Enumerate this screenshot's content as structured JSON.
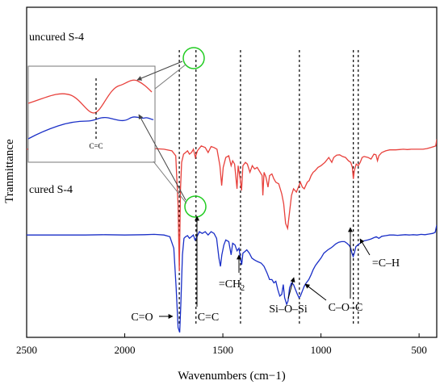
{
  "chart_data": {
    "type": "line",
    "xlabel": "Wavenumbers (cm−1)",
    "ylabel": "Tranmittance",
    "xlim": [
      2500,
      410
    ],
    "x_ticks": [
      "2500",
      "2000",
      "1500",
      "1000",
      "500"
    ],
    "x_tick_values": [
      2500,
      2000,
      1500,
      1000,
      500
    ],
    "series": [
      {
        "name": "uncured S-4",
        "color": "#e8413c",
        "points": [
          [
            2500,
            0.57
          ],
          [
            2400,
            0.57
          ],
          [
            2300,
            0.57
          ],
          [
            2200,
            0.571
          ],
          [
            2100,
            0.569
          ],
          [
            2000,
            0.571
          ],
          [
            1900,
            0.572
          ],
          [
            1850,
            0.572
          ],
          [
            1800,
            0.57
          ],
          [
            1760,
            0.565
          ],
          [
            1740,
            0.55
          ],
          [
            1728,
            0.4
          ],
          [
            1722,
            0.2
          ],
          [
            1716,
            0.45
          ],
          [
            1710,
            0.53
          ],
          [
            1700,
            0.555
          ],
          [
            1690,
            0.56
          ],
          [
            1680,
            0.565
          ],
          [
            1670,
            0.555
          ],
          [
            1660,
            0.56
          ],
          [
            1650,
            0.57
          ],
          [
            1640,
            0.545
          ],
          [
            1630,
            0.565
          ],
          [
            1610,
            0.58
          ],
          [
            1590,
            0.575
          ],
          [
            1575,
            0.56
          ],
          [
            1560,
            0.578
          ],
          [
            1545,
            0.575
          ],
          [
            1530,
            0.57
          ],
          [
            1515,
            0.52
          ],
          [
            1506,
            0.46
          ],
          [
            1498,
            0.515
          ],
          [
            1485,
            0.545
          ],
          [
            1470,
            0.55
          ],
          [
            1458,
            0.52
          ],
          [
            1450,
            0.535
          ],
          [
            1440,
            0.525
          ],
          [
            1428,
            0.45
          ],
          [
            1422,
            0.52
          ],
          [
            1412,
            0.48
          ],
          [
            1405,
            0.445
          ],
          [
            1398,
            0.52
          ],
          [
            1385,
            0.53
          ],
          [
            1375,
            0.525
          ],
          [
            1362,
            0.5
          ],
          [
            1350,
            0.52
          ],
          [
            1338,
            0.51
          ],
          [
            1325,
            0.515
          ],
          [
            1300,
            0.49
          ],
          [
            1296,
            0.43
          ],
          [
            1290,
            0.5
          ],
          [
            1280,
            0.485
          ],
          [
            1270,
            0.455
          ],
          [
            1262,
            0.49
          ],
          [
            1250,
            0.495
          ],
          [
            1240,
            0.48
          ],
          [
            1230,
            0.47
          ],
          [
            1215,
            0.465
          ],
          [
            1200,
            0.435
          ],
          [
            1190,
            0.405
          ],
          [
            1180,
            0.345
          ],
          [
            1170,
            0.33
          ],
          [
            1160,
            0.38
          ],
          [
            1150,
            0.43
          ],
          [
            1140,
            0.45
          ],
          [
            1125,
            0.44
          ],
          [
            1115,
            0.455
          ],
          [
            1105,
            0.47
          ],
          [
            1095,
            0.455
          ],
          [
            1085,
            0.45
          ],
          [
            1070,
            0.47
          ],
          [
            1060,
            0.475
          ],
          [
            1050,
            0.49
          ],
          [
            1040,
            0.5
          ],
          [
            1030,
            0.505
          ],
          [
            1015,
            0.515
          ],
          [
            1000,
            0.52
          ],
          [
            980,
            0.53
          ],
          [
            960,
            0.545
          ],
          [
            945,
            0.53
          ],
          [
            935,
            0.545
          ],
          [
            920,
            0.552
          ],
          [
            905,
            0.553
          ],
          [
            890,
            0.548
          ],
          [
            875,
            0.545
          ],
          [
            860,
            0.535
          ],
          [
            848,
            0.53
          ],
          [
            840,
            0.515
          ],
          [
            835,
            0.48
          ],
          [
            830,
            0.505
          ],
          [
            820,
            0.525
          ],
          [
            810,
            0.52
          ],
          [
            800,
            0.53
          ],
          [
            790,
            0.545
          ],
          [
            780,
            0.548
          ],
          [
            760,
            0.545
          ],
          [
            745,
            0.54
          ],
          [
            730,
            0.555
          ],
          [
            720,
            0.553
          ],
          [
            712,
            0.535
          ],
          [
            705,
            0.55
          ],
          [
            690,
            0.56
          ],
          [
            670,
            0.565
          ],
          [
            650,
            0.568
          ],
          [
            620,
            0.568
          ],
          [
            600,
            0.569
          ],
          [
            580,
            0.57
          ],
          [
            560,
            0.569
          ],
          [
            540,
            0.57
          ],
          [
            520,
            0.57
          ],
          [
            500,
            0.57
          ],
          [
            480,
            0.57
          ],
          [
            460,
            0.572
          ],
          [
            440,
            0.575
          ],
          [
            425,
            0.578
          ],
          [
            415,
            0.58
          ],
          [
            410,
            0.6
          ]
        ]
      },
      {
        "name": "cured S-4",
        "color": "#1a2fc7",
        "points": [
          [
            2500,
            0.31
          ],
          [
            2400,
            0.31
          ],
          [
            2300,
            0.31
          ],
          [
            2200,
            0.31
          ],
          [
            2100,
            0.311
          ],
          [
            2000,
            0.31
          ],
          [
            1900,
            0.311
          ],
          [
            1850,
            0.312
          ],
          [
            1800,
            0.31
          ],
          [
            1770,
            0.305
          ],
          [
            1750,
            0.27
          ],
          [
            1738,
            0.15
          ],
          [
            1728,
            0.03
          ],
          [
            1720,
            0.015
          ],
          [
            1714,
            0.1
          ],
          [
            1706,
            0.25
          ],
          [
            1698,
            0.3
          ],
          [
            1690,
            0.305
          ],
          [
            1680,
            0.308
          ],
          [
            1670,
            0.3
          ],
          [
            1660,
            0.305
          ],
          [
            1650,
            0.31
          ],
          [
            1642,
            0.295
          ],
          [
            1632,
            0.305
          ],
          [
            1620,
            0.32
          ],
          [
            1605,
            0.315
          ],
          [
            1590,
            0.32
          ],
          [
            1575,
            0.31
          ],
          [
            1560,
            0.32
          ],
          [
            1545,
            0.315
          ],
          [
            1532,
            0.3
          ],
          [
            1520,
            0.24
          ],
          [
            1512,
            0.215
          ],
          [
            1505,
            0.25
          ],
          [
            1495,
            0.28
          ],
          [
            1485,
            0.295
          ],
          [
            1470,
            0.29
          ],
          [
            1458,
            0.25
          ],
          [
            1450,
            0.285
          ],
          [
            1438,
            0.28
          ],
          [
            1428,
            0.262
          ],
          [
            1418,
            0.27
          ],
          [
            1410,
            0.24
          ],
          [
            1404,
            0.22
          ],
          [
            1398,
            0.255
          ],
          [
            1388,
            0.26
          ],
          [
            1378,
            0.265
          ],
          [
            1365,
            0.255
          ],
          [
            1352,
            0.24
          ],
          [
            1340,
            0.235
          ],
          [
            1325,
            0.23
          ],
          [
            1305,
            0.225
          ],
          [
            1290,
            0.215
          ],
          [
            1275,
            0.195
          ],
          [
            1262,
            0.175
          ],
          [
            1250,
            0.175
          ],
          [
            1240,
            0.165
          ],
          [
            1230,
            0.17
          ],
          [
            1220,
            0.145
          ],
          [
            1210,
            0.125
          ],
          [
            1200,
            0.13
          ],
          [
            1192,
            0.16
          ],
          [
            1185,
            0.12
          ],
          [
            1175,
            0.1
          ],
          [
            1168,
            0.11
          ],
          [
            1160,
            0.15
          ],
          [
            1150,
            0.165
          ],
          [
            1140,
            0.16
          ],
          [
            1130,
            0.145
          ],
          [
            1120,
            0.13
          ],
          [
            1112,
            0.12
          ],
          [
            1105,
            0.125
          ],
          [
            1095,
            0.14
          ],
          [
            1085,
            0.155
          ],
          [
            1075,
            0.165
          ],
          [
            1062,
            0.175
          ],
          [
            1050,
            0.19
          ],
          [
            1040,
            0.205
          ],
          [
            1028,
            0.218
          ],
          [
            1015,
            0.228
          ],
          [
            1000,
            0.24
          ],
          [
            985,
            0.255
          ],
          [
            965,
            0.265
          ],
          [
            952,
            0.27
          ],
          [
            940,
            0.275
          ],
          [
            925,
            0.283
          ],
          [
            910,
            0.288
          ],
          [
            895,
            0.29
          ],
          [
            880,
            0.29
          ],
          [
            868,
            0.285
          ],
          [
            855,
            0.278
          ],
          [
            848,
            0.27
          ],
          [
            842,
            0.255
          ],
          [
            836,
            0.245
          ],
          [
            830,
            0.255
          ],
          [
            822,
            0.275
          ],
          [
            812,
            0.28
          ],
          [
            800,
            0.285
          ],
          [
            790,
            0.29
          ],
          [
            778,
            0.293
          ],
          [
            760,
            0.295
          ],
          [
            745,
            0.298
          ],
          [
            730,
            0.302
          ],
          [
            718,
            0.305
          ],
          [
            705,
            0.3
          ],
          [
            690,
            0.306
          ],
          [
            670,
            0.308
          ],
          [
            650,
            0.31
          ],
          [
            630,
            0.31
          ],
          [
            610,
            0.309
          ],
          [
            590,
            0.31
          ],
          [
            570,
            0.311
          ],
          [
            550,
            0.31
          ],
          [
            530,
            0.311
          ],
          [
            510,
            0.31
          ],
          [
            490,
            0.312
          ],
          [
            470,
            0.311
          ],
          [
            450,
            0.313
          ],
          [
            430,
            0.315
          ],
          [
            418,
            0.318
          ],
          [
            410,
            0.34
          ]
        ]
      }
    ],
    "markers": [
      {
        "label": "C=O",
        "x": 1722
      },
      {
        "label": "C=C",
        "x": 1637
      },
      {
        "label": "=CH2",
        "x": 1410
      },
      {
        "label": "Si–O–Si",
        "x": 1110
      },
      {
        "label": "C–O–C",
        "x": 835
      },
      {
        "label": "=C–H",
        "x": 810
      }
    ],
    "inset_label": "C=C",
    "annotations": [
      {
        "id": "uncured",
        "text": "uncured S-4"
      },
      {
        "id": "cured",
        "text": "cured S-4"
      },
      {
        "id": "co",
        "text": "C=O"
      },
      {
        "id": "cc",
        "text": "C=C"
      },
      {
        "id": "ch2",
        "text": "=CH",
        "sub": "2"
      },
      {
        "id": "sios",
        "text": "Si–O–Si"
      },
      {
        "id": "coc",
        "text": "C–O–C"
      },
      {
        "id": "ch",
        "text": "=C–H"
      }
    ]
  }
}
